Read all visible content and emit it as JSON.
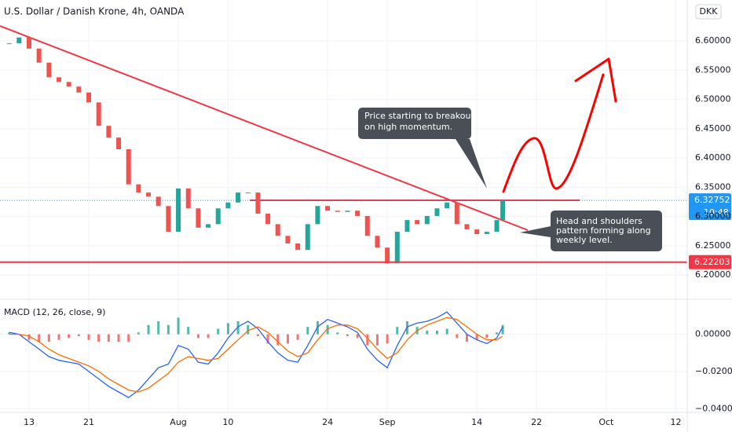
{
  "chart_data": [
    {
      "type": "candlestick",
      "title": "U.S. Dollar / Danish Krone, 4h, OANDA",
      "currency_button": "DKK",
      "x": [
        -2,
        -1,
        0,
        1,
        2,
        3,
        4,
        5,
        6,
        7,
        8,
        9,
        10,
        11,
        12,
        13,
        14,
        15,
        16,
        17,
        18,
        19,
        20,
        21,
        22,
        23,
        24,
        25,
        26,
        27,
        28,
        29,
        30,
        31,
        32,
        33,
        34,
        35,
        36,
        37,
        38,
        39,
        40,
        41,
        42,
        43,
        44,
        45,
        46,
        47,
        47.6
      ],
      "values": [
        6.596,
        6.606,
        6.587,
        6.563,
        6.538,
        6.53,
        6.522,
        6.512,
        6.495,
        6.455,
        6.435,
        6.415,
        6.355,
        6.341,
        6.334,
        6.318,
        6.274,
        6.348,
        6.314,
        6.281,
        6.287,
        6.314,
        6.324,
        6.341,
        6.341,
        6.305,
        6.287,
        6.267,
        6.254,
        6.243,
        6.287,
        6.318,
        6.31,
        6.308,
        6.31,
        6.301,
        6.267,
        6.247,
        6.22,
        6.274,
        6.294,
        6.287,
        6.301,
        6.314,
        6.324,
        6.287,
        6.278,
        6.27,
        6.274,
        6.294,
        6.32752
      ],
      "up_color": "#26a69a",
      "down_color": "#ef5350",
      "xlim": [
        -2.92,
        66.14
      ],
      "xticks": [
        {
          "value": 0,
          "label": "13"
        },
        {
          "value": 6,
          "label": "21"
        },
        {
          "value": 15,
          "label": "Aug"
        },
        {
          "value": 20,
          "label": "10"
        },
        {
          "value": 30,
          "label": "24"
        },
        {
          "value": 36,
          "label": "Sep"
        },
        {
          "value": 45,
          "label": "14"
        },
        {
          "value": 51,
          "label": "22"
        },
        {
          "value": 58,
          "label": "Oct"
        },
        {
          "value": 65,
          "label": "12"
        }
      ],
      "ylim": [
        6.16,
        6.67
      ],
      "yticks": [
        {
          "value": 6.2,
          "label": "6.20000"
        },
        {
          "value": 6.25,
          "label": "6.25000"
        },
        {
          "value": 6.3,
          "label": "6.30000"
        },
        {
          "value": 6.35,
          "label": "6.35000"
        },
        {
          "value": 6.4,
          "label": "6.40000"
        },
        {
          "value": 6.45,
          "label": "6.45000"
        },
        {
          "value": 6.5,
          "label": "6.50000"
        },
        {
          "value": 6.55,
          "label": "6.55000"
        },
        {
          "value": 6.6,
          "label": "6.60000"
        }
      ],
      "grid": true,
      "last_price": 6.32752,
      "countdown": "10:48",
      "support_level": 6.22203,
      "annotations": [
        [
          "Price starting to breakout",
          "on high momentum."
        ],
        [
          "Head and shoulders",
          "pattern forming along",
          "weekly level."
        ]
      ]
    },
    {
      "type": "macd",
      "title": "MACD (12, 26, close, 9)",
      "x": [
        -2,
        -1,
        0,
        1,
        2,
        3,
        4,
        5,
        6,
        7,
        8,
        9,
        10,
        11,
        12,
        13,
        14,
        15,
        16,
        17,
        18,
        19,
        20,
        21,
        22,
        23,
        24,
        25,
        26,
        27,
        28,
        29,
        30,
        31,
        32,
        33,
        34,
        35,
        36,
        37,
        38,
        39,
        40,
        41,
        42,
        43,
        44,
        45,
        46,
        47,
        47.6
      ],
      "series": [
        {
          "name": "Histogram",
          "color": "#26a69a",
          "negative_color": "#ef5350",
          "values": [
            0.001,
            0.0,
            -0.003,
            -0.004,
            -0.004,
            -0.003,
            -0.002,
            -0.001,
            -0.003,
            -0.004,
            -0.004,
            -0.004,
            -0.004,
            0.001,
            0.005,
            0.007,
            0.005,
            0.009,
            0.004,
            -0.002,
            -0.002,
            0.003,
            0.006,
            0.007,
            0.005,
            -0.001,
            -0.005,
            -0.006,
            -0.005,
            -0.003,
            0.004,
            0.007,
            0.005,
            0.001,
            -0.001,
            -0.002,
            -0.006,
            -0.006,
            -0.005,
            0.004,
            0.007,
            0.004,
            0.002,
            0.002,
            0.003,
            -0.002,
            -0.004,
            -0.003,
            -0.002,
            0.001,
            0.005
          ]
        },
        {
          "name": "MACD",
          "color": "#2962ff",
          "values": [
            0.001,
            0.0,
            -0.004,
            -0.008,
            -0.012,
            -0.014,
            -0.015,
            -0.016,
            -0.02,
            -0.024,
            -0.028,
            -0.031,
            -0.034,
            -0.03,
            -0.024,
            -0.018,
            -0.016,
            -0.006,
            -0.008,
            -0.015,
            -0.016,
            -0.01,
            -0.002,
            0.004,
            0.007,
            0.003,
            -0.004,
            -0.01,
            -0.014,
            -0.015,
            -0.006,
            0.004,
            0.008,
            0.006,
            0.004,
            0.001,
            -0.008,
            -0.014,
            -0.018,
            -0.006,
            0.004,
            0.006,
            0.007,
            0.009,
            0.012,
            0.006,
            0.0,
            -0.003,
            -0.005,
            -0.002,
            0.004
          ]
        },
        {
          "name": "Signal",
          "color": "#ff6d00",
          "values": [
            0.0,
            0.0,
            -0.001,
            -0.004,
            -0.008,
            -0.011,
            -0.013,
            -0.015,
            -0.017,
            -0.02,
            -0.024,
            -0.027,
            -0.03,
            -0.031,
            -0.029,
            -0.025,
            -0.021,
            -0.015,
            -0.012,
            -0.013,
            -0.014,
            -0.013,
            -0.008,
            -0.003,
            0.002,
            0.004,
            0.001,
            -0.004,
            -0.009,
            -0.012,
            -0.01,
            -0.003,
            0.003,
            0.005,
            0.005,
            0.003,
            -0.002,
            -0.008,
            -0.013,
            -0.01,
            -0.003,
            0.002,
            0.005,
            0.007,
            0.009,
            0.008,
            0.004,
            0.0,
            -0.003,
            -0.003,
            -0.001
          ]
        }
      ],
      "ylim": [
        -0.042,
        0.018
      ],
      "yticks": [
        {
          "value": 0,
          "label": "0.00000"
        },
        {
          "value": -0.02,
          "label": "−0.02000"
        },
        {
          "value": -0.04,
          "label": "−0.04000"
        }
      ],
      "grid": true
    }
  ]
}
